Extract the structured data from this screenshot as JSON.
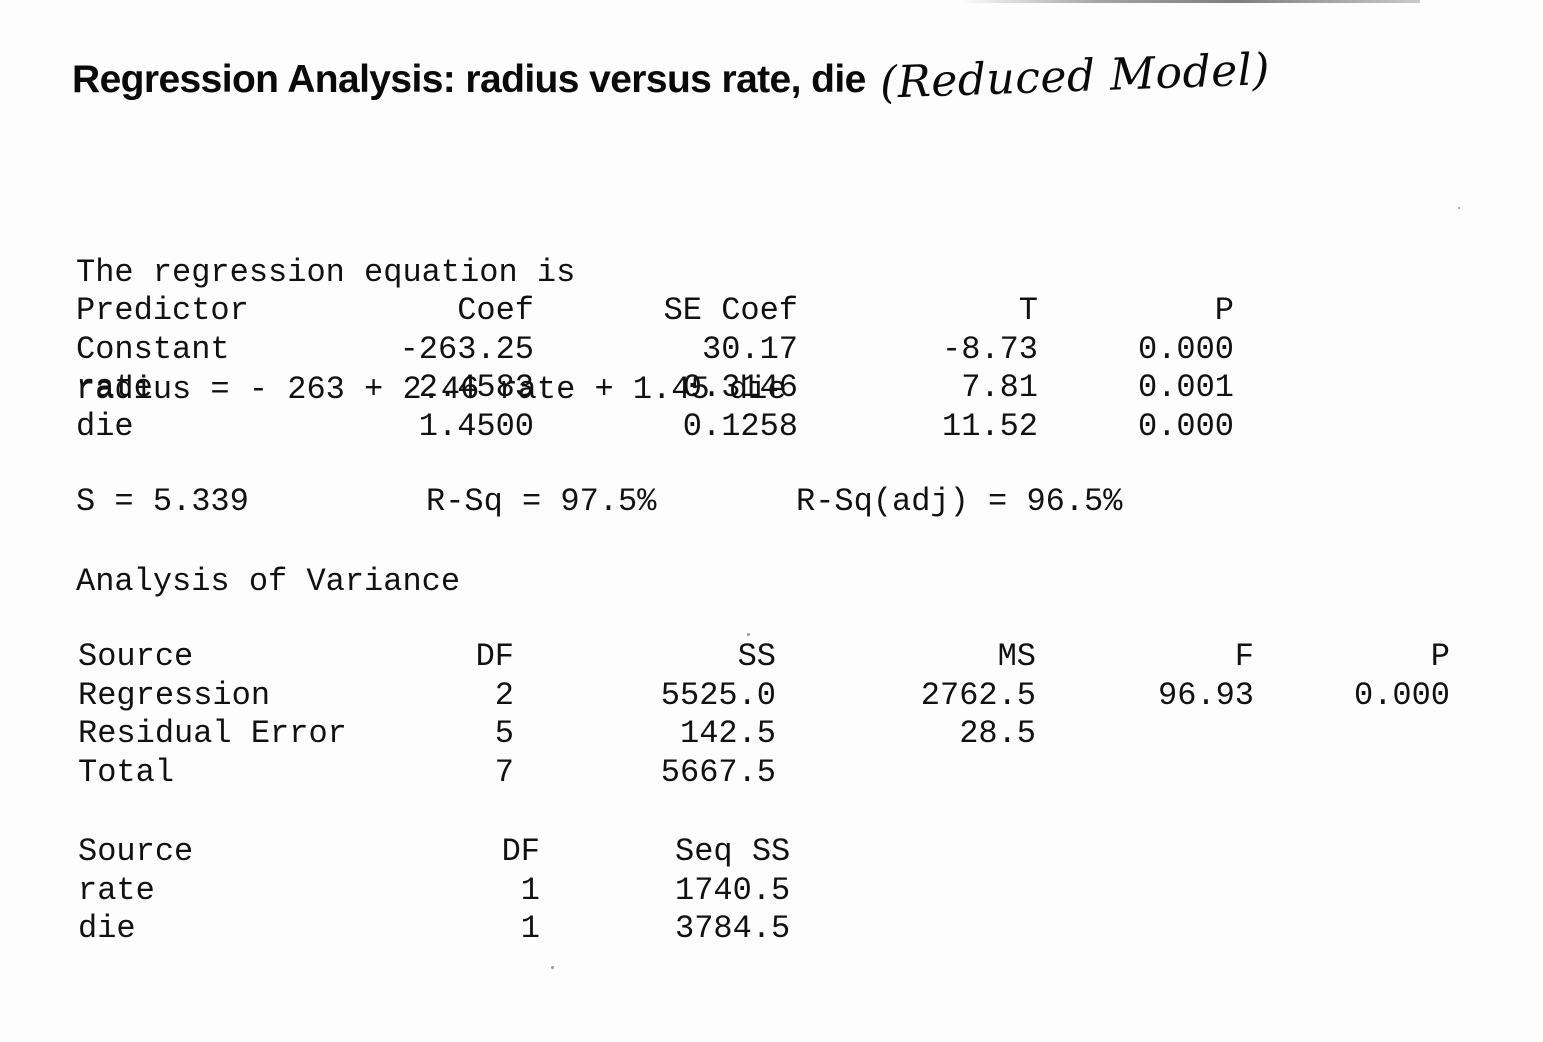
{
  "title": "Regression Analysis: radius versus rate, die",
  "handwritten_note": "(Reduced Model)",
  "equation": {
    "intro": "The regression equation is",
    "formula": "radius = - 263 + 2.46 rate + 1.45 die"
  },
  "coefficients": {
    "headers": [
      "Predictor",
      "Coef",
      "SE Coef",
      "T",
      "P"
    ],
    "rows": [
      [
        "Constant",
        "-263.25",
        "30.17",
        "-8.73",
        "0.000"
      ],
      [
        "rate",
        "2.4583",
        "0.3146",
        "7.81",
        "0.001"
      ],
      [
        "die",
        "1.4500",
        "0.1258",
        "11.52",
        "0.000"
      ]
    ]
  },
  "fit_stats": {
    "s": "S = 5.339",
    "r_sq": "R-Sq = 97.5%",
    "r_sq_adj": "R-Sq(adj) = 96.5%"
  },
  "anova": {
    "title": "Analysis of Variance",
    "headers": [
      "Source",
      "DF",
      "SS",
      "MS",
      "F",
      "P"
    ],
    "rows": [
      [
        "Regression",
        "2",
        "5525.0",
        "2762.5",
        "96.93",
        "0.000"
      ],
      [
        "Residual Error",
        "5",
        "142.5",
        "28.5",
        "",
        ""
      ],
      [
        "Total",
        "7",
        "5667.5",
        "",
        "",
        ""
      ]
    ]
  },
  "seq_ss": {
    "headers": [
      "Source",
      "DF",
      "Seq SS"
    ],
    "rows": [
      [
        "rate",
        "1",
        "1740.5"
      ],
      [
        "die",
        "1",
        "3784.5"
      ]
    ]
  }
}
